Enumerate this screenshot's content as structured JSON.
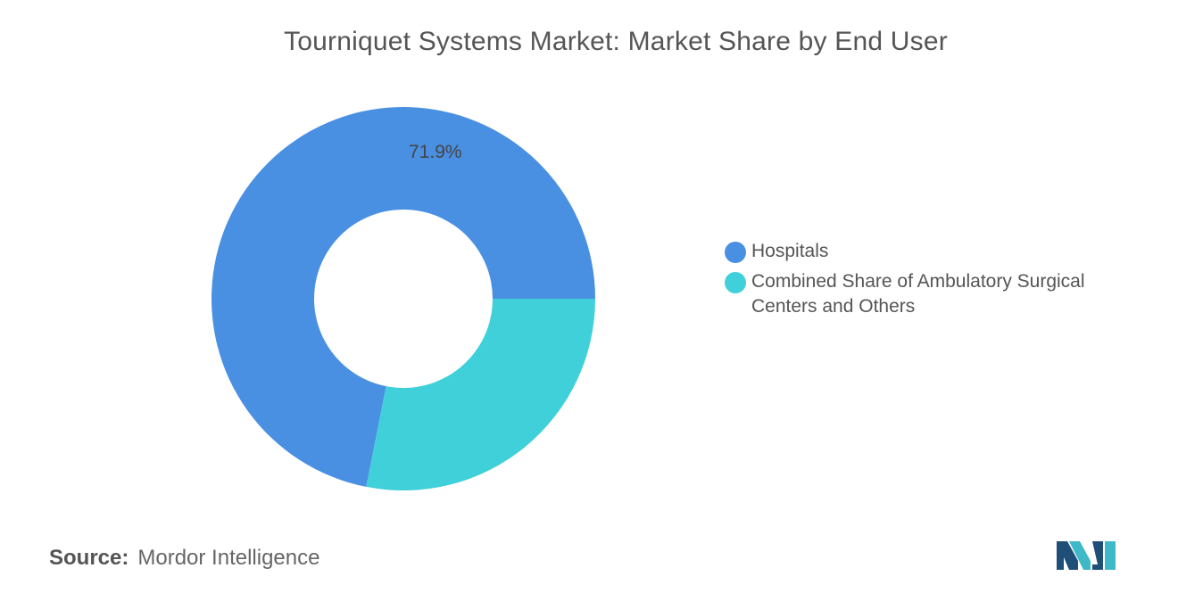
{
  "chart_data": {
    "type": "pie",
    "title": "Tourniquet Systems Market: Market Share by End User",
    "donut": true,
    "series": [
      {
        "name": "Hospitals",
        "value": 71.9,
        "label": "71.9%",
        "color": "#4a90e2"
      },
      {
        "name": "Combined Share of Ambulatory Surgical Centers and Others",
        "value": 28.1,
        "label": "",
        "color": "#40d0da"
      }
    ],
    "legend_position": "right"
  },
  "source": {
    "label": "Source:",
    "text": "Mordor Intelligence"
  },
  "logo": {
    "icon": "mordor-intelligence-logo",
    "colors": [
      "#1f4e79",
      "#3fb8c8"
    ]
  }
}
